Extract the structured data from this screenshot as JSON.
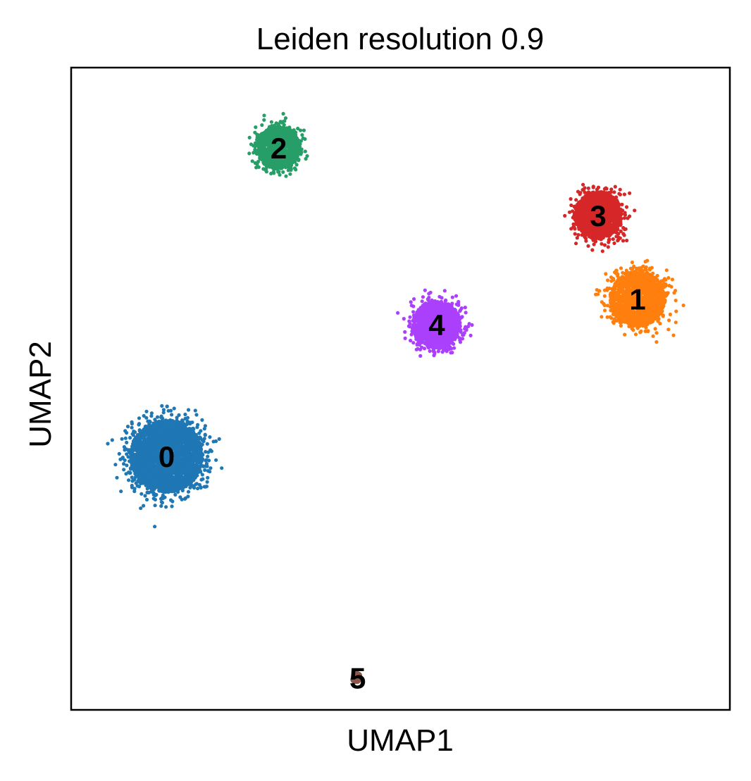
{
  "chart_data": {
    "type": "scatter",
    "title": "Leiden resolution 0.9",
    "xlabel": "UMAP1",
    "ylabel": "UMAP2",
    "xlim": [
      0,
      10
    ],
    "ylim": [
      0,
      10
    ],
    "grid": false,
    "legend": "on data",
    "ticks": "none",
    "clusters": [
      {
        "label": "0",
        "color": "#1f77b4",
        "center": [
          1.45,
          3.95
        ],
        "spread": 0.55,
        "n": 2600
      },
      {
        "label": "1",
        "color": "#ff7f0e",
        "center": [
          8.6,
          6.4
        ],
        "spread": 0.42,
        "n": 1500
      },
      {
        "label": "2",
        "color": "#279e68",
        "center": [
          3.15,
          8.75
        ],
        "spread": 0.33,
        "n": 1100
      },
      {
        "label": "3",
        "color": "#d62728",
        "center": [
          8.0,
          7.7
        ],
        "spread": 0.36,
        "n": 1300
      },
      {
        "label": "4",
        "color": "#aa40fc",
        "center": [
          5.55,
          6.0
        ],
        "spread": 0.36,
        "n": 1400
      },
      {
        "label": "5",
        "color": "#8c564b",
        "center": [
          4.35,
          0.5
        ],
        "spread": 0.05,
        "n": 8
      }
    ]
  }
}
